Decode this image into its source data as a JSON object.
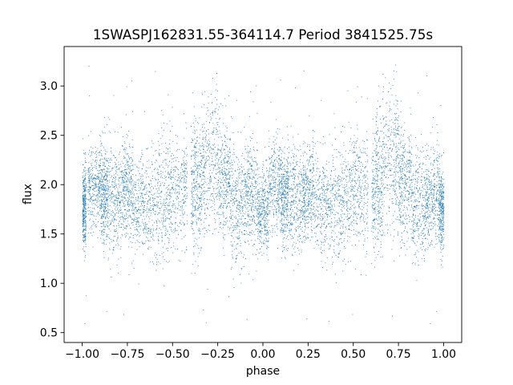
{
  "chart_data": {
    "type": "scatter",
    "title": "1SWASPJ162831.55-364114.7 Period 3841525.75s",
    "xlabel": "phase",
    "ylabel": "flux",
    "xlim": [
      -1.1,
      1.1
    ],
    "ylim": [
      0.4,
      3.4
    ],
    "xticks": [
      -1.0,
      -0.75,
      -0.5,
      -0.25,
      0.0,
      0.25,
      0.5,
      0.75,
      1.0
    ],
    "xtick_labels": [
      "−1.00",
      "−0.75",
      "−0.50",
      "−0.25",
      "0.00",
      "0.25",
      "0.50",
      "0.75",
      "1.00"
    ],
    "yticks": [
      0.5,
      1.0,
      1.5,
      2.0,
      2.5,
      3.0
    ],
    "ytick_labels": [
      "0.5",
      "1.0",
      "1.5",
      "2.0",
      "2.5",
      "3.0"
    ],
    "grid": false,
    "legend": "none",
    "marker_color": "#1f77b4",
    "series": [
      {
        "phase_groups": [
          {
            "x": [
              -1.0,
              -0.98
            ],
            "center": 1.78,
            "spread": 0.22
          },
          {
            "x": [
              -0.97,
              -0.9
            ],
            "center": 2.0,
            "spread": 0.2
          },
          {
            "x": [
              -0.9,
              -0.86
            ],
            "center": 1.9,
            "spread": 0.25
          },
          {
            "x": [
              -0.86,
              -0.78
            ],
            "center": 1.85,
            "spread": 0.28
          },
          {
            "x": [
              -0.78,
              -0.72
            ],
            "center": 1.95,
            "spread": 0.24
          },
          {
            "x": [
              -0.72,
              -0.62
            ],
            "center": 1.8,
            "spread": 0.25
          },
          {
            "x": [
              -0.62,
              -0.52
            ],
            "center": 1.85,
            "spread": 0.3
          },
          {
            "x": [
              -0.52,
              -0.42
            ],
            "center": 1.95,
            "spread": 0.28
          },
          {
            "x": [
              -0.4,
              -0.34
            ],
            "center": 2.0,
            "spread": 0.35
          },
          {
            "x": [
              -0.34,
              -0.25
            ],
            "center": 2.25,
            "spread": 0.35
          },
          {
            "x": [
              -0.25,
              -0.18
            ],
            "center": 2.05,
            "spread": 0.3
          },
          {
            "x": [
              -0.18,
              -0.1
            ],
            "center": 1.8,
            "spread": 0.3
          },
          {
            "x": [
              -0.1,
              -0.03
            ],
            "center": 1.9,
            "spread": 0.25
          },
          {
            "x": [
              -0.03,
              0.03
            ],
            "center": 1.75,
            "spread": 0.22
          },
          {
            "x": [
              0.03,
              0.1
            ],
            "center": 2.0,
            "spread": 0.22
          },
          {
            "x": [
              0.1,
              0.14
            ],
            "center": 1.9,
            "spread": 0.25
          },
          {
            "x": [
              0.14,
              0.22
            ],
            "center": 1.85,
            "spread": 0.28
          },
          {
            "x": [
              0.22,
              0.28
            ],
            "center": 1.95,
            "spread": 0.24
          },
          {
            "x": [
              0.28,
              0.38
            ],
            "center": 1.8,
            "spread": 0.25
          },
          {
            "x": [
              0.38,
              0.48
            ],
            "center": 1.85,
            "spread": 0.3
          },
          {
            "x": [
              0.48,
              0.58
            ],
            "center": 1.95,
            "spread": 0.28
          },
          {
            "x": [
              0.6,
              0.66
            ],
            "center": 2.0,
            "spread": 0.35
          },
          {
            "x": [
              0.66,
              0.75
            ],
            "center": 2.25,
            "spread": 0.35
          },
          {
            "x": [
              0.75,
              0.82
            ],
            "center": 2.05,
            "spread": 0.3
          },
          {
            "x": [
              0.82,
              0.9
            ],
            "center": 1.8,
            "spread": 0.3
          },
          {
            "x": [
              0.9,
              0.97
            ],
            "center": 1.9,
            "spread": 0.25
          },
          {
            "x": [
              0.97,
              1.0
            ],
            "center": 1.75,
            "spread": 0.22
          }
        ],
        "approx_point_count": 9000
      }
    ]
  }
}
